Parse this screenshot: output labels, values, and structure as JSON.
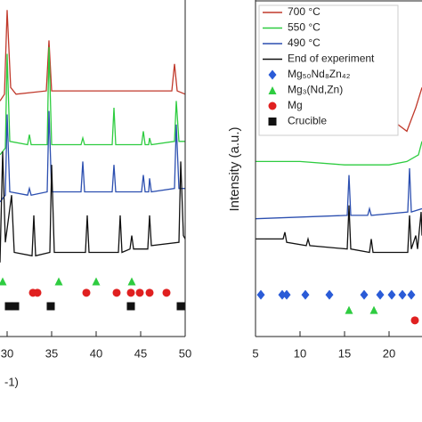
{
  "chart_data": [
    {
      "type": "line",
      "xlabel": "-1)",
      "xlim": [
        29.2,
        50
      ],
      "ylim": [
        0,
        100
      ],
      "xticks": [
        30,
        35,
        40,
        45,
        50
      ],
      "series": [
        {
          "color": "#c0392b",
          "x": [
            29.2,
            29.7,
            30,
            30.4,
            31,
            34.4,
            34.7,
            35,
            48.5,
            48.8,
            49.1,
            50
          ],
          "values": [
            70,
            72,
            97,
            74,
            72,
            73,
            88,
            73,
            73,
            81,
            73,
            72
          ]
        },
        {
          "color": "#2ecc40",
          "x": [
            29.2,
            29.8,
            30,
            30.3,
            32.3,
            32.5,
            32.7,
            34.5,
            34.7,
            35,
            38.3,
            38.5,
            38.7,
            41.8,
            42,
            42.2,
            45.1,
            45.3,
            45.5,
            45.9,
            46,
            46.2,
            48.8,
            49,
            49.3,
            50
          ],
          "values": [
            54,
            56,
            84,
            58,
            57,
            60,
            57,
            57,
            86,
            57,
            57,
            59,
            57,
            57,
            68,
            57,
            57,
            61,
            57,
            57,
            59,
            57,
            58,
            70,
            58,
            58
          ]
        },
        {
          "color": "#2c4fb0",
          "x": [
            29.2,
            29.8,
            30,
            30.3,
            32.3,
            32.5,
            32.7,
            34.5,
            34.7,
            35,
            38.3,
            38.5,
            38.7,
            41.8,
            42,
            42.2,
            45.1,
            45.3,
            45.5,
            45.9,
            46,
            46.2,
            48.8,
            49,
            49.3,
            50
          ],
          "values": [
            40,
            42,
            66,
            43,
            42,
            44,
            42,
            43,
            67,
            43,
            43,
            52,
            43,
            43,
            51,
            43,
            43,
            48,
            43,
            43,
            47,
            43,
            44,
            63,
            44,
            44
          ]
        },
        {
          "color": "#111111",
          "x": [
            29.2,
            29.5,
            29.8,
            30.5,
            30.8,
            32.8,
            33,
            33.2,
            34.8,
            35,
            35.3,
            38.8,
            39,
            39.2,
            42.5,
            42.7,
            42.9,
            43.8,
            44,
            44.2,
            45.8,
            46,
            46.2,
            49.3,
            49.5,
            49.8,
            50
          ],
          "values": [
            22,
            55,
            28,
            42,
            25,
            24,
            36,
            24,
            25,
            51,
            25,
            25,
            36,
            25,
            25,
            36,
            25,
            26,
            30,
            26,
            26,
            36,
            27,
            28,
            52,
            30,
            29
          ]
        }
      ],
      "markers": [
        {
          "shape": "triangle",
          "color": "#2ecc40",
          "x": [
            29.5,
            35.8,
            40,
            44
          ],
          "values": [
            16.4,
            16.4,
            16.4,
            16.4
          ]
        },
        {
          "shape": "circle",
          "color": "#e02020",
          "x": [
            32.9,
            33.4,
            38.9,
            42.3,
            43.9,
            44.9,
            46,
            47.9
          ],
          "values": [
            13,
            13,
            13,
            13,
            13,
            13,
            13,
            13
          ]
        },
        {
          "shape": "square",
          "color": "#111111",
          "x": [
            30.2,
            30.9,
            34.9,
            43.9,
            49.5
          ],
          "values": [
            9,
            9,
            9,
            9,
            9
          ]
        }
      ]
    },
    {
      "type": "line",
      "ylabel": "Intensity (a.u.)",
      "xlim": [
        5,
        23.7
      ],
      "ylim": [
        0,
        100
      ],
      "xticks": [
        5,
        10,
        15,
        20
      ],
      "series": [
        {
          "name": "700 °C",
          "color": "#c0392b",
          "x": [
            20.5,
            22,
            23,
            23.7
          ],
          "values": [
            64,
            61,
            68,
            74
          ]
        },
        {
          "name": "550 °C",
          "color": "#2ecc40",
          "x": [
            5,
            10,
            15,
            20,
            22,
            23.3,
            23.5,
            23.7
          ],
          "values": [
            52,
            52,
            51,
            51,
            52,
            54,
            56,
            58
          ]
        },
        {
          "name": "490 °C",
          "color": "#2c4fb0",
          "x": [
            5,
            15.3,
            15.5,
            15.7,
            17.6,
            17.8,
            18,
            22.1,
            22.3,
            22.5,
            23.7
          ],
          "values": [
            35,
            36,
            48,
            36,
            36,
            38,
            36,
            37,
            50,
            37,
            38
          ]
        },
        {
          "name": "End of experiment",
          "color": "#111111",
          "x": [
            5,
            8.1,
            8.3,
            8.5,
            10.7,
            10.9,
            11.1,
            15.3,
            15.5,
            15.7,
            17.8,
            18,
            18.2,
            22.1,
            22.3,
            22.5,
            23,
            23.2,
            23.6,
            23.7
          ],
          "values": [
            29,
            29,
            31,
            28,
            27,
            29,
            27,
            26,
            39,
            26,
            25,
            29,
            25,
            25,
            36,
            26,
            30,
            26,
            37,
            30
          ]
        }
      ],
      "markers": [
        {
          "name": "Mg₅₀Nd₈Zn₄₂",
          "shape": "diamond",
          "color": "#2a5bd7",
          "x": [
            5.6,
            8,
            8.5,
            10.6,
            13.3,
            17.2,
            19,
            20.3,
            21.5,
            22.5
          ],
          "values": [
            12.4,
            12.4,
            12.4,
            12.4,
            12.4,
            12.4,
            12.4,
            12.4,
            12.4,
            12.4
          ]
        },
        {
          "name": "Mg₃(Nd,Zn)",
          "shape": "triangle",
          "color": "#2ecc40",
          "x": [
            15.5,
            18.3
          ],
          "values": [
            7.9,
            7.9
          ]
        },
        {
          "name": "Mg",
          "shape": "circle",
          "color": "#e02020",
          "x": [
            22.9
          ],
          "values": [
            4.8
          ]
        },
        {
          "name": "Crucible",
          "shape": "square",
          "color": "#111111",
          "x": [],
          "values": []
        }
      ]
    }
  ]
}
